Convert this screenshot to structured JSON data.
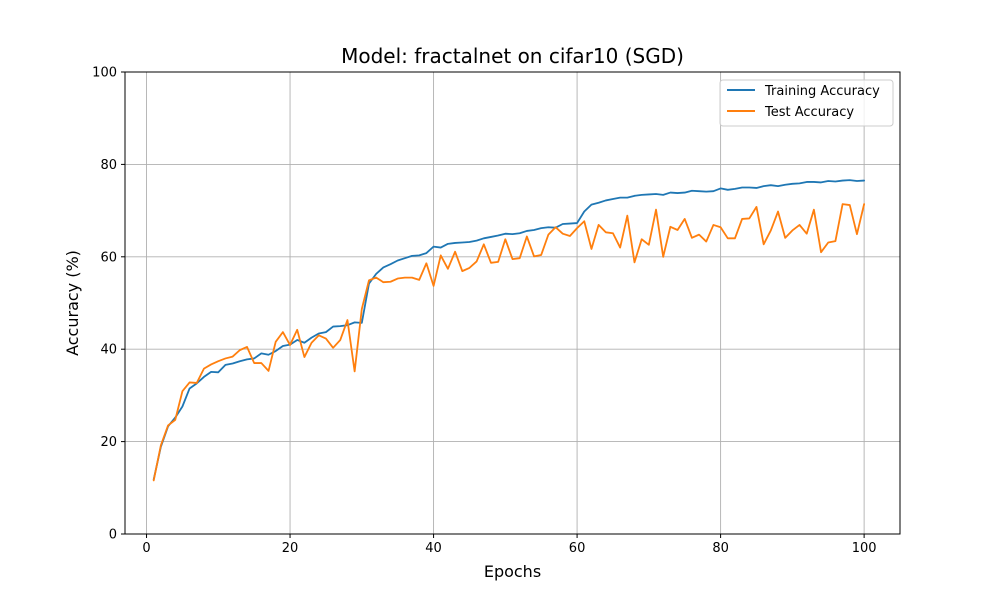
{
  "chart_data": {
    "type": "line",
    "title": "Model: fractalnet on cifar10 (SGD)",
    "xlabel": "Epochs",
    "ylabel": "Accuracy (%)",
    "xlim": [
      -3,
      105
    ],
    "ylim": [
      0,
      100
    ],
    "xticks": [
      0,
      20,
      40,
      60,
      80,
      100
    ],
    "yticks": [
      0,
      20,
      40,
      60,
      80,
      100
    ],
    "grid": true,
    "legend_position": "top-right",
    "x_start": 1,
    "series": [
      {
        "name": "Training Accuracy",
        "color": "#1f77b4",
        "values": [
          11.8,
          18.9,
          23.3,
          25.2,
          27.6,
          31.5,
          32.6,
          34.0,
          35.1,
          35.0,
          36.6,
          36.9,
          37.4,
          37.8,
          38.0,
          39.1,
          38.8,
          39.6,
          40.7,
          41.0,
          42.0,
          41.4,
          42.5,
          43.4,
          43.7,
          44.9,
          45.0,
          45.2,
          45.8,
          45.7,
          54.2,
          56.3,
          57.7,
          58.4,
          59.2,
          59.7,
          60.2,
          60.3,
          60.8,
          62.2,
          62.0,
          62.8,
          63.0,
          63.1,
          63.2,
          63.5,
          64.0,
          64.3,
          64.6,
          65.0,
          64.9,
          65.1,
          65.6,
          65.8,
          66.2,
          66.4,
          66.3,
          67.1,
          67.2,
          67.3,
          69.8,
          71.3,
          71.7,
          72.2,
          72.5,
          72.8,
          72.8,
          73.2,
          73.4,
          73.5,
          73.6,
          73.4,
          73.9,
          73.8,
          73.9,
          74.3,
          74.2,
          74.1,
          74.2,
          74.8,
          74.5,
          74.7,
          75.0,
          75.0,
          74.9,
          75.3,
          75.5,
          75.3,
          75.6,
          75.8,
          75.9,
          76.2,
          76.2,
          76.1,
          76.4,
          76.3,
          76.5,
          76.6,
          76.4,
          76.5
        ]
      },
      {
        "name": "Test Accuracy",
        "color": "#ff7f0e",
        "values": [
          11.6,
          19.2,
          23.5,
          24.7,
          30.9,
          32.8,
          32.7,
          35.8,
          36.7,
          37.4,
          38.0,
          38.4,
          39.8,
          40.5,
          37.0,
          37.0,
          35.3,
          41.6,
          43.7,
          40.9,
          44.2,
          38.3,
          41.4,
          43.0,
          42.3,
          40.3,
          42.0,
          46.3,
          35.2,
          48.7,
          54.9,
          55.5,
          54.5,
          54.6,
          55.3,
          55.5,
          55.5,
          55.0,
          58.6,
          53.7,
          60.3,
          57.4,
          61.1,
          56.9,
          57.6,
          59.0,
          62.7,
          58.7,
          58.9,
          63.8,
          59.5,
          59.7,
          64.4,
          60.1,
          60.4,
          64.8,
          66.4,
          65.0,
          64.5,
          66.2,
          67.7,
          61.7,
          66.9,
          65.3,
          65.1,
          62.0,
          68.9,
          58.8,
          63.8,
          62.6,
          70.2,
          60.0,
          66.5,
          65.8,
          68.2,
          64.1,
          64.8,
          63.3,
          66.9,
          66.4,
          64.0,
          64.0,
          68.2,
          68.3,
          70.8,
          62.7,
          65.7,
          69.8,
          64.1,
          65.7,
          66.9,
          65.0,
          70.2,
          61.0,
          63.1,
          63.4,
          71.4,
          71.2,
          64.9,
          71.4
        ]
      }
    ]
  }
}
